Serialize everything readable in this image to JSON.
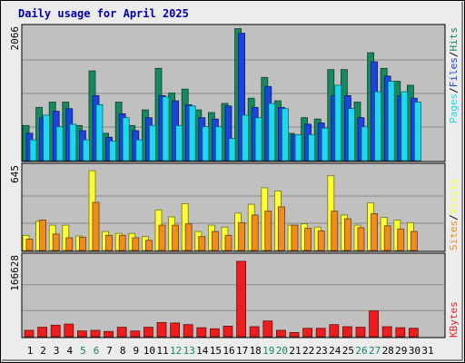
{
  "chart_data": {
    "type": "bar",
    "title": "Daily usage for April 2025",
    "categories": [
      "1",
      "2",
      "3",
      "4",
      "5",
      "6",
      "7",
      "8",
      "9",
      "10",
      "11",
      "12",
      "13",
      "14",
      "15",
      "16",
      "17",
      "18",
      "19",
      "20",
      "21",
      "22",
      "23",
      "24",
      "25",
      "26",
      "27",
      "28",
      "29",
      "30",
      "31"
    ],
    "weekend_days": [
      "5",
      "6",
      "12",
      "13",
      "19",
      "20",
      "26",
      "27"
    ],
    "panels": [
      {
        "name": "top",
        "max_label": "2066",
        "ylim": [
          0,
          2066
        ],
        "series": [
          {
            "name": "Hits",
            "color": "#168a5e",
            "values": [
              540,
              820,
              900,
              900,
              540,
              1380,
              420,
              900,
              540,
              780,
              1420,
              1040,
              1100,
              780,
              740,
              880,
              2030,
              960,
              1280,
              920,
              420,
              660,
              640,
              1400,
              1400,
              900,
              1660,
              1420,
              1220,
              1160,
              0
            ]
          },
          {
            "name": "Files",
            "color": "#1a44e0",
            "values": [
              420,
              660,
              760,
              800,
              460,
              1000,
              360,
              720,
              460,
              660,
              1000,
              920,
              860,
              660,
              640,
              840,
              1960,
              820,
              1140,
              820,
              400,
              560,
              580,
              1000,
              1000,
              660,
              1520,
              1300,
              1000,
              960,
              0
            ]
          },
          {
            "name": "Pages",
            "color": "#1ed8f0",
            "values": [
              320,
              700,
              520,
              560,
              320,
              860,
              300,
              660,
              320,
              540,
              980,
              540,
              840,
              520,
              520,
              340,
              700,
              660,
              880,
              800,
              400,
              400,
              500,
              1160,
              800,
              520,
              1060,
              1220,
              1060,
              900,
              0
            ]
          }
        ]
      },
      {
        "name": "middle",
        "max_label": "645",
        "ylim": [
          0,
          645
        ],
        "series": [
          {
            "name": "Visits",
            "color": "#ffff30",
            "values": [
              120,
              230,
              200,
              200,
              115,
              630,
              150,
              135,
              135,
              110,
              320,
              265,
              370,
              150,
              200,
              185,
              295,
              365,
              495,
              470,
              200,
              210,
              185,
              590,
              280,
              200,
              375,
              260,
              240,
              220,
              0
            ]
          },
          {
            "name": "Sites",
            "color": "#f08c1e",
            "values": [
              90,
              240,
              130,
              100,
              105,
              380,
              120,
              120,
              100,
              80,
              200,
              200,
              210,
              110,
              150,
              120,
              220,
              280,
              310,
              345,
              200,
              175,
              155,
              310,
              250,
              180,
              290,
              195,
              170,
              150,
              0
            ]
          }
        ]
      },
      {
        "name": "bottom",
        "max_label": "166628",
        "ylim": [
          0,
          166628
        ],
        "series": [
          {
            "name": "KBytes",
            "color": "#ee1c1c",
            "values": [
              13500,
              20200,
              24700,
              26900,
              12300,
              13500,
              11200,
              20200,
              12300,
              20200,
              30300,
              29200,
              25800,
              19100,
              16800,
              22400,
              161000,
              21300,
              33600,
              13500,
              8900,
              17900,
              17900,
              25800,
              21300,
              20200,
              55000,
              21300,
              19100,
              18000,
              0
            ]
          }
        ]
      }
    ],
    "legend": {
      "top_separators": [
        "/",
        "/"
      ],
      "middle_separators": [
        "/"
      ]
    },
    "grid": true
  }
}
